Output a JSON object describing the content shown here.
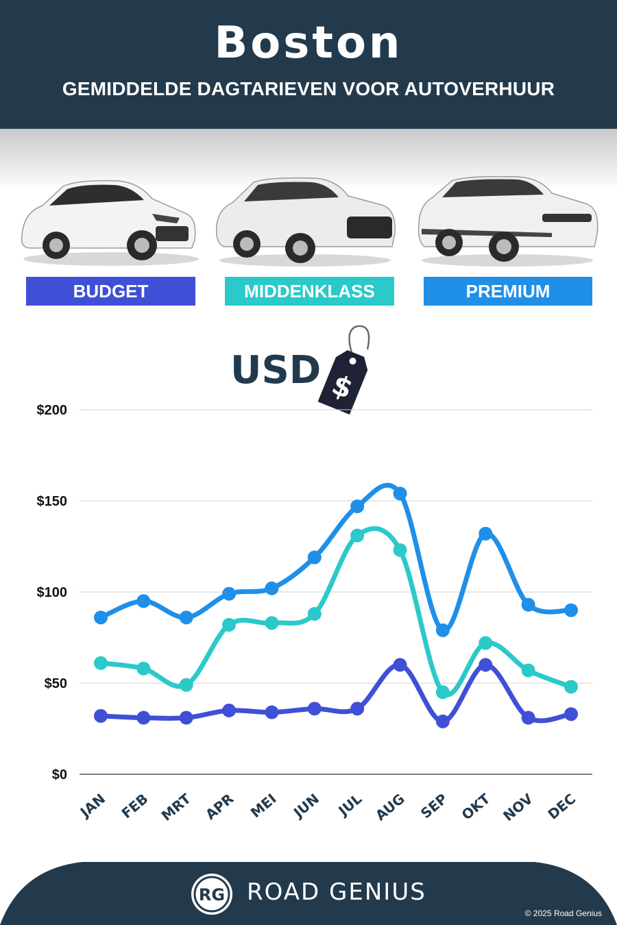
{
  "header": {
    "title": "Boston",
    "subtitle": "GEMIDDELDE DAGTARIEVEN VOOR AUTOVERHUUR"
  },
  "categories": [
    {
      "label": "BUDGET",
      "color": "#3f4fd6"
    },
    {
      "label": "MIDDENKLASS",
      "color": "#2bc9c9"
    },
    {
      "label": "PREMIUM",
      "color": "#1f8fe8"
    }
  ],
  "currency": {
    "label": "USD",
    "tag_icon": "price-tag-icon",
    "tag_symbol": "$"
  },
  "chart_data": {
    "type": "line",
    "categories": [
      "JAN",
      "FEB",
      "MRT",
      "APR",
      "MEI",
      "JUN",
      "JUL",
      "AUG",
      "SEP",
      "OKT",
      "NOV",
      "DEC"
    ],
    "series": [
      {
        "name": "PREMIUM",
        "color": "#1f8fe8",
        "values": [
          86,
          95,
          86,
          99,
          102,
          119,
          147,
          154,
          79,
          132,
          93,
          90
        ]
      },
      {
        "name": "MIDDENKLASS",
        "color": "#2bc9c9",
        "values": [
          61,
          58,
          49,
          82,
          83,
          88,
          131,
          123,
          45,
          72,
          57,
          48
        ]
      },
      {
        "name": "BUDGET",
        "color": "#3f4fd6",
        "values": [
          32,
          31,
          31,
          35,
          34,
          36,
          36,
          60,
          29,
          60,
          31,
          33
        ]
      }
    ],
    "yticks": [
      "$0",
      "$50",
      "$100",
      "$150",
      "$200"
    ],
    "ytick_values": [
      0,
      50,
      100,
      150,
      200
    ],
    "ylim": [
      0,
      200
    ],
    "grid": true
  },
  "footer": {
    "brand": "ROAD GENIUS",
    "logo_text": "RG",
    "copyright": "© 2025 Road Genius"
  }
}
